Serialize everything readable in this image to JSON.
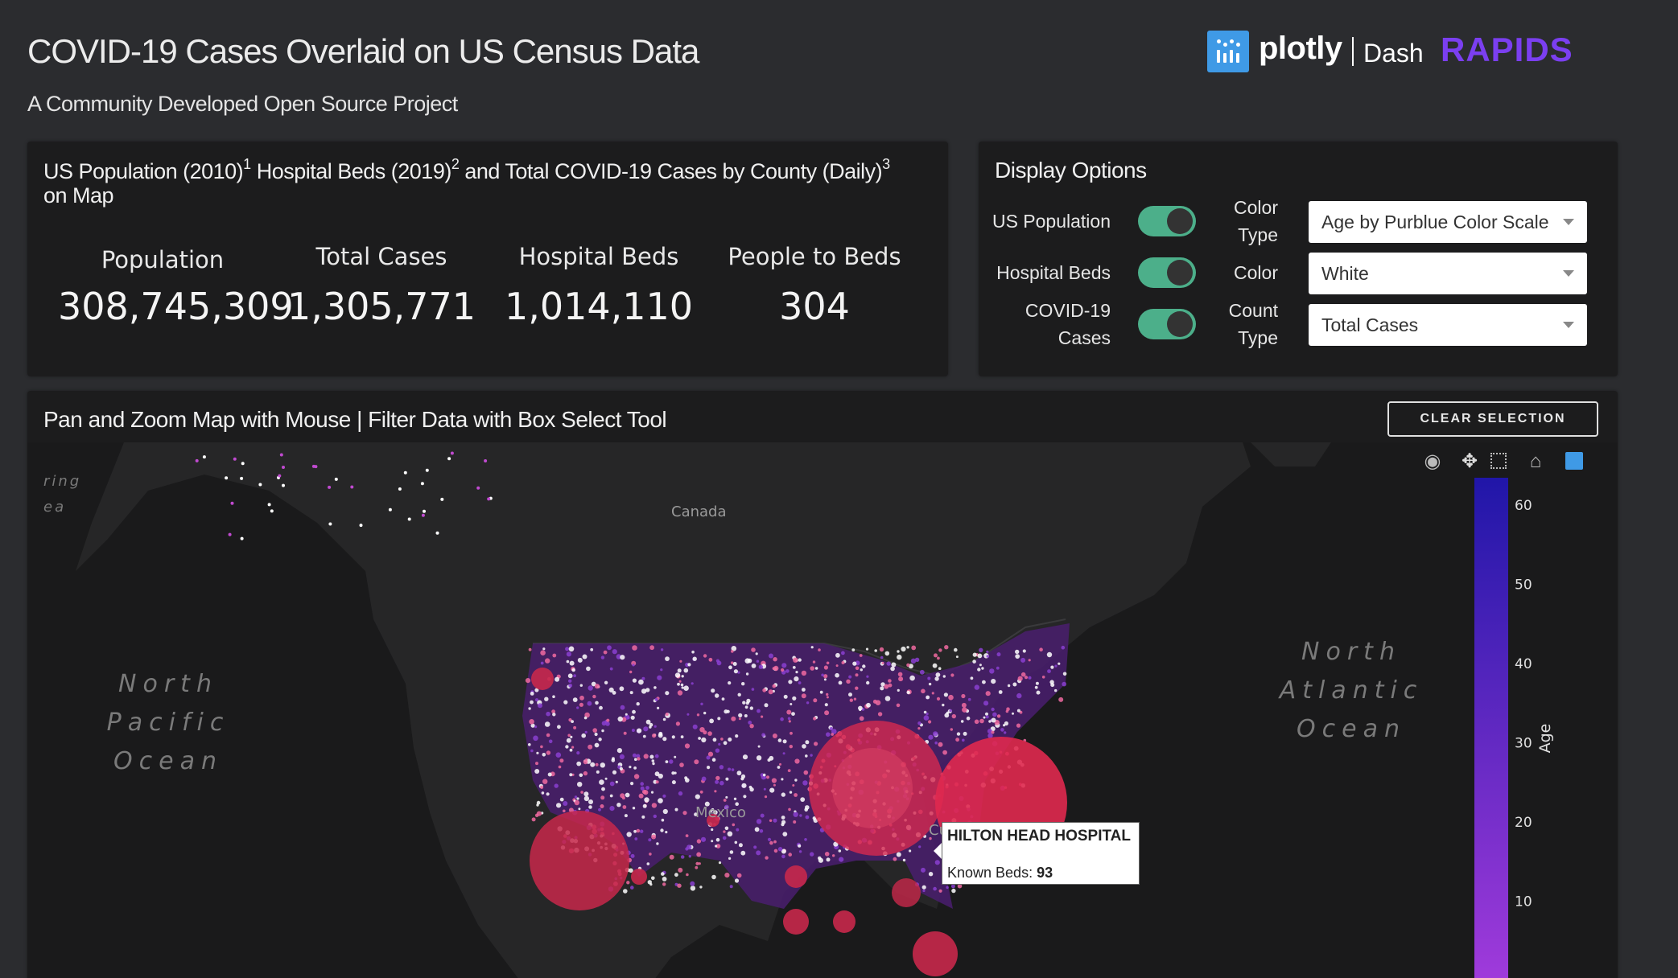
{
  "header": {
    "title": "COVID-19 Cases Overlaid on US Census Data",
    "subtitle": "A Community Developed Open Source Project",
    "brand_plotly": "plotly",
    "brand_dash": "Dash",
    "brand_rapids": "RAPIDS"
  },
  "stats": {
    "title_part1": "US Population (2010)",
    "sup1": "1",
    "title_part2": " Hospital Beds (2019)",
    "sup2": "2",
    "title_part3": " and Total COVID-19 Cases by County (Daily)",
    "sup3": "3",
    "title_part4": " on Map",
    "items": [
      {
        "label": "Population",
        "value": "308,745,309"
      },
      {
        "label": "Total Cases",
        "value": "1,305,771"
      },
      {
        "label": "Hospital Beds",
        "value": "1,014,110"
      },
      {
        "label": "People to Beds",
        "value": "304"
      }
    ]
  },
  "options": {
    "title": "Display Options",
    "toggles": [
      {
        "label": "US Population",
        "on": true
      },
      {
        "label": "Hospital Beds",
        "on": true
      },
      {
        "label_line1": "COVID-19",
        "label_line2": "Cases",
        "on": true
      }
    ],
    "selects": [
      {
        "label_line1": "Color",
        "label_line2": "Type",
        "value": "Age by Purblue Color Scale"
      },
      {
        "label_line1": "Color",
        "label_line2": "",
        "value": "White"
      },
      {
        "label_line1": "Count",
        "label_line2": "Type",
        "value": "Total Cases"
      }
    ]
  },
  "map": {
    "title": "Pan and Zoom Map with Mouse | Filter Data with Box Select Tool",
    "clear_button": "CLEAR SELECTION",
    "labels": {
      "canada": "Canada",
      "mexico": "Mexico",
      "cuba": "Cuba",
      "pacific": [
        "North",
        "Pacific",
        "Ocean"
      ],
      "atlantic": [
        "North",
        "Atlantic",
        "Ocean"
      ],
      "bering": [
        "ring",
        "ea"
      ]
    },
    "colorbar": {
      "title": "Age",
      "ticks": [
        "60",
        "50",
        "40",
        "30",
        "20",
        "10"
      ],
      "colors": [
        "#2016a8",
        "#a23bdc"
      ]
    },
    "tooltip": {
      "name": "HILTON HEAD HOSPITAL",
      "beds_label": "Known Beds: ",
      "beds_value": "93"
    },
    "modebar_icons": [
      "camera-icon",
      "pan-icon",
      "box-select-icon",
      "home-icon",
      "plotly-icon"
    ]
  }
}
